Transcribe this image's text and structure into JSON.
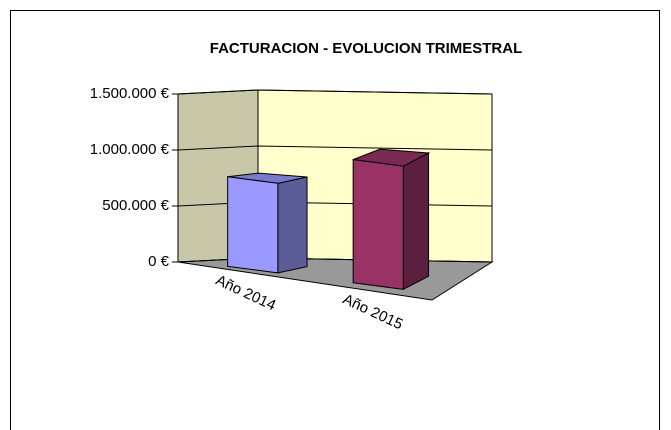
{
  "chart_data": {
    "type": "bar3d",
    "title": "FACTURACION  - EVOLUCION TRIMESTRAL",
    "categories": [
      "Año 2014",
      "Año 2015"
    ],
    "values": [
      800000,
      1100000
    ],
    "colors": [
      "#9999ff",
      "#993366"
    ],
    "ylim": [
      0,
      1500000
    ],
    "yticks": [
      {
        "value": 0,
        "label": "0 €"
      },
      {
        "value": 500000,
        "label": "500.000 €"
      },
      {
        "value": 1000000,
        "label": "1.000.000 €"
      },
      {
        "value": 1500000,
        "label": "1.500.000 €"
      }
    ],
    "grid": true
  }
}
